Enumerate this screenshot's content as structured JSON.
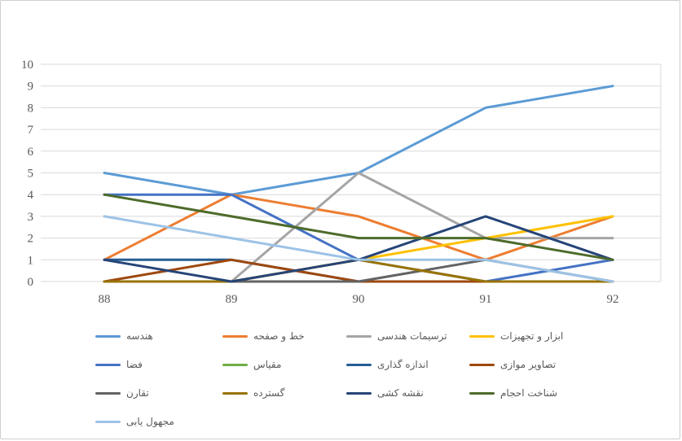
{
  "chart_data": {
    "type": "line",
    "x": [
      "88",
      "89",
      "90",
      "91",
      "92"
    ],
    "series": [
      {
        "name": "هندسه",
        "color": "#5B9BD5",
        "values": [
          5,
          4,
          5,
          8,
          9
        ]
      },
      {
        "name": "خط و صفحه",
        "color": "#ED7D31",
        "values": [
          1,
          4,
          3,
          1,
          3
        ]
      },
      {
        "name": "ترسیمات هندسی",
        "color": "#A5A5A5",
        "values": [
          0,
          0,
          5,
          2,
          2
        ]
      },
      {
        "name": "ابزار و تجهیزات",
        "color": "#FFC000",
        "values": [
          0,
          0,
          1,
          2,
          3
        ]
      },
      {
        "name": "فضا",
        "color": "#4472C4",
        "values": [
          4,
          4,
          1,
          0,
          1
        ]
      },
      {
        "name": "مقیاس",
        "color": "#70AD47",
        "values": [
          0,
          0,
          0,
          0,
          0
        ]
      },
      {
        "name": "اندازه گذاری",
        "color": "#255E91",
        "values": [
          1,
          1,
          0,
          0,
          0
        ]
      },
      {
        "name": "تصاویر موازی",
        "color": "#9E480E",
        "values": [
          0,
          1,
          0,
          0,
          0
        ]
      },
      {
        "name": "تقارن",
        "color": "#636363",
        "values": [
          0,
          0,
          0,
          1,
          0
        ]
      },
      {
        "name": "گسترده",
        "color": "#997300",
        "values": [
          0,
          0,
          1,
          0,
          0
        ]
      },
      {
        "name": "نقشه کشی",
        "color": "#264478",
        "values": [
          1,
          0,
          1,
          3,
          1
        ]
      },
      {
        "name": "شناخت احجام",
        "color": "#4E6B2B",
        "values": [
          4,
          3,
          2,
          2,
          1
        ]
      },
      {
        "name": "مجهول یابی",
        "color": "#9DC3E6",
        "values": [
          3,
          2,
          1,
          1,
          0
        ]
      }
    ],
    "title": "",
    "xlabel": "",
    "ylabel": "",
    "ylim": [
      0,
      10
    ],
    "yticks": [
      0,
      1,
      2,
      3,
      4,
      5,
      6,
      7,
      8,
      9,
      10
    ],
    "grid": true,
    "gridline_color": "#d9d9d9",
    "axis_label_color": "#595959",
    "legend_position": "bottom"
  }
}
